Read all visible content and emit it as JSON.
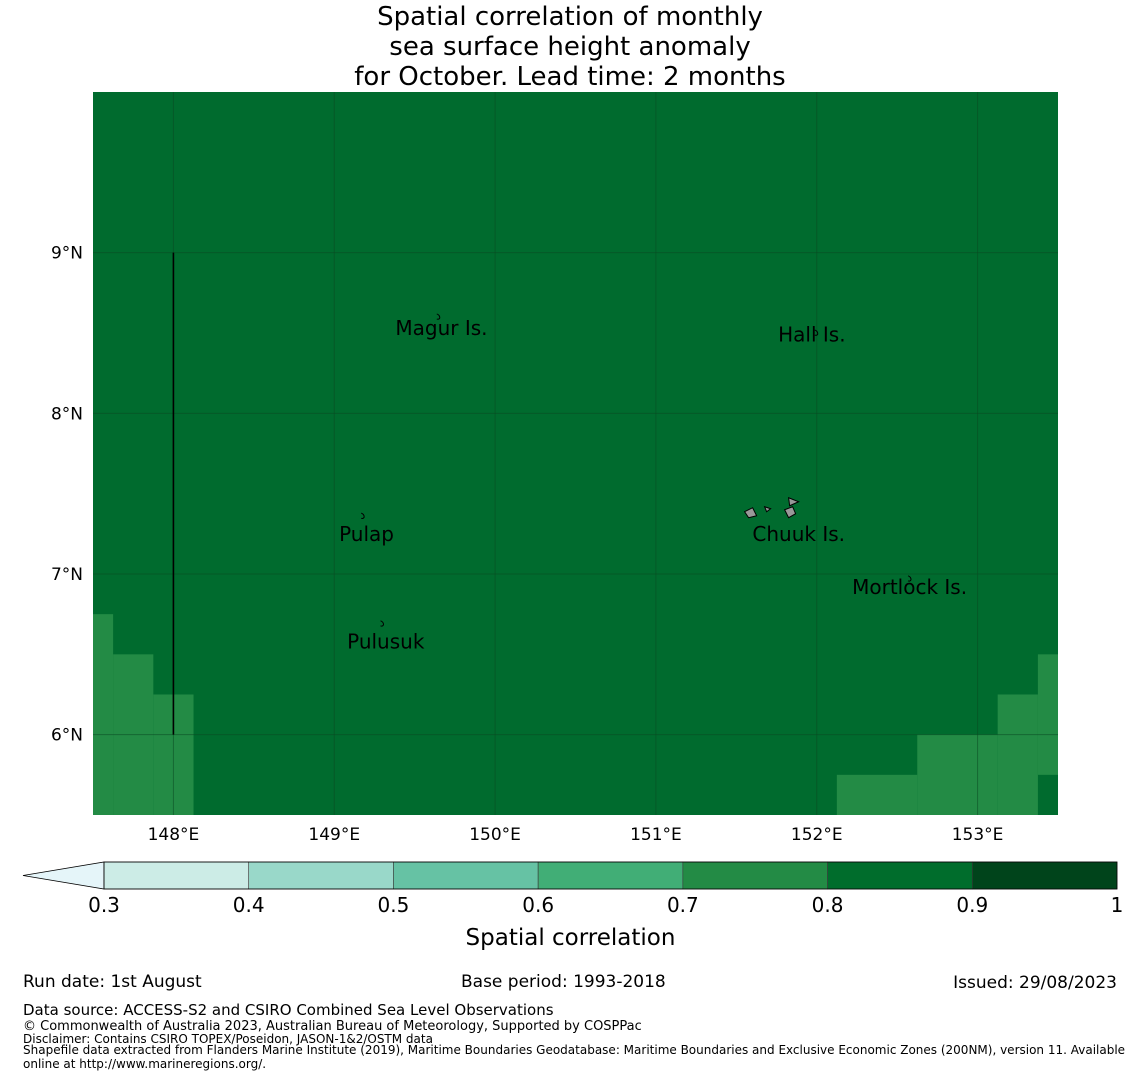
{
  "title_lines": [
    "Spatial correlation of monthly",
    "sea surface height anomaly",
    "for October. Lead time: 2 months"
  ],
  "map": {
    "lon_range": [
      147.5,
      153.5
    ],
    "lat_range": [
      5.5,
      10.0
    ],
    "x_ticks": [
      {
        "value": 148,
        "label": "148°E"
      },
      {
        "value": 149,
        "label": "149°E"
      },
      {
        "value": 150,
        "label": "150°E"
      },
      {
        "value": 151,
        "label": "151°E"
      },
      {
        "value": 152,
        "label": "152°E"
      },
      {
        "value": 153,
        "label": "153°E"
      }
    ],
    "y_ticks": [
      {
        "value": 9,
        "label": "9°N"
      },
      {
        "value": 8,
        "label": "8°N"
      },
      {
        "value": 7,
        "label": "7°N"
      },
      {
        "value": 6,
        "label": "6°N"
      }
    ],
    "background_class": "0.8-0.9",
    "background_color": "#006b2e",
    "lower_class_color": "#238b45",
    "lower_class_cells": [
      {
        "lon0": 147.5,
        "lon1": 147.625,
        "lat0": 5.5,
        "lat1": 6.75
      },
      {
        "lon0": 147.625,
        "lon1": 147.875,
        "lat0": 5.5,
        "lat1": 6.5
      },
      {
        "lon0": 147.875,
        "lon1": 148.125,
        "lat0": 5.5,
        "lat1": 6.25
      },
      {
        "lon0": 152.125,
        "lon1": 152.625,
        "lat0": 5.5,
        "lat1": 5.75
      },
      {
        "lon0": 152.625,
        "lon1": 153.125,
        "lat0": 5.5,
        "lat1": 6.0
      },
      {
        "lon0": 153.125,
        "lon1": 153.375,
        "lat0": 5.5,
        "lat1": 6.25
      },
      {
        "lon0": 153.375,
        "lon1": 153.5,
        "lat0": 5.75,
        "lat1": 6.5
      }
    ],
    "boundary_line": {
      "lon": 148.0,
      "lat0": 6.0,
      "lat1": 9.0
    },
    "islands": [
      {
        "name": "Magur Is.",
        "label_lon": 149.38,
        "label_lat": 8.53,
        "marker_lon": 149.65,
        "marker_lat": 8.6
      },
      {
        "name": "Hall Is.",
        "label_lon": 151.76,
        "label_lat": 8.49,
        "marker_lon": 152.0,
        "marker_lat": 8.5
      },
      {
        "name": "Pulap",
        "label_lon": 149.03,
        "label_lat": 7.25,
        "marker_lon": 149.18,
        "marker_lat": 7.36
      },
      {
        "name": "Chuuk Is.",
        "label_lon": 151.6,
        "label_lat": 7.25,
        "marker_lon": 151.85,
        "marker_lat": 7.4
      },
      {
        "name": "Mortlock Is.",
        "label_lon": 152.22,
        "label_lat": 6.92,
        "marker_lon": 152.58,
        "marker_lat": 6.97
      },
      {
        "name": "Pulusuk",
        "label_lon": 149.08,
        "label_lat": 6.58,
        "marker_lon": 149.3,
        "marker_lat": 6.69
      }
    ]
  },
  "colorbar": {
    "label": "Spatial correlation",
    "ticks": [
      "0.3",
      "0.4",
      "0.5",
      "0.6",
      "0.7",
      "0.8",
      "0.9",
      "1"
    ],
    "extend_color": "#e5f5f9",
    "colors": [
      "#ccece6",
      "#99d8c9",
      "#66c2a4",
      "#41ae76",
      "#238b45",
      "#006d2c",
      "#00441b"
    ]
  },
  "footer": {
    "run_date": "Run date: 1st August",
    "base_period": "Base period: 1993-2018",
    "issued": "Issued: 29/08/2023",
    "data_source": "Data source: ACCESS-S2 and CSIRO Combined Sea Level Observations",
    "copyright": "© Commonwealth of Australia 2023, Australian Bureau of Meteorology, Supported by COSPPac",
    "disclaimer": "Disclaimer: Contains CSIRO TOPEX/Poseidon, JASON-1&2/OSTM data",
    "shapefile": "Shapefile data extracted from Flanders Marine Institute (2019), Maritime Boundaries Geodatabase: Maritime Boundaries and Exclusive Economic Zones (200NM), version 11. Available online at http://www.marineregions.org/."
  }
}
